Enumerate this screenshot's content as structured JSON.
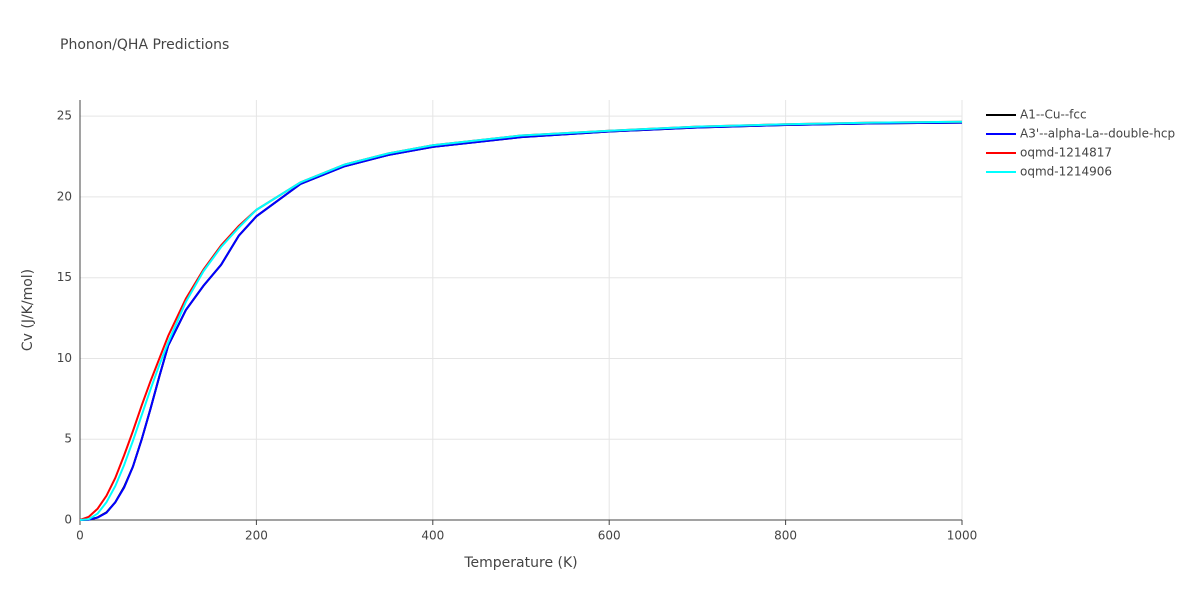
{
  "chart_data": {
    "type": "line",
    "title": "Phonon/QHA Predictions",
    "x_label": "Temperature (K)",
    "y_label": "Cv (J/K/mol)",
    "x": [
      0,
      10,
      20,
      30,
      40,
      50,
      60,
      70,
      80,
      90,
      100,
      120,
      140,
      160,
      180,
      200,
      250,
      300,
      350,
      400,
      500,
      600,
      700,
      800,
      900,
      1000
    ],
    "series": [
      {
        "name": "A1--Cu--fcc",
        "color": "#000000",
        "values": [
          0,
          0.02,
          0.16,
          0.47,
          1.1,
          2.05,
          3.3,
          5.0,
          6.9,
          8.9,
          10.8,
          13.0,
          14.5,
          15.8,
          17.6,
          18.8,
          20.8,
          21.9,
          22.6,
          23.1,
          23.7,
          24.05,
          24.3,
          24.45,
          24.55,
          24.6
        ]
      },
      {
        "name": "A3'--alpha-La--double-hcp",
        "color": "#0000ff",
        "values": [
          0,
          0.02,
          0.15,
          0.45,
          1.1,
          2.0,
          3.3,
          5.0,
          6.9,
          8.9,
          10.8,
          13.0,
          14.5,
          15.8,
          17.6,
          18.8,
          20.8,
          21.9,
          22.6,
          23.1,
          23.7,
          24.05,
          24.3,
          24.45,
          24.55,
          24.6
        ]
      },
      {
        "name": "oqmd-1214817",
        "color": "#ff0000",
        "values": [
          0,
          0.2,
          0.7,
          1.5,
          2.6,
          4.0,
          5.5,
          7.1,
          8.6,
          10.0,
          11.4,
          13.7,
          15.5,
          17.0,
          18.2,
          19.2,
          20.9,
          22.0,
          22.7,
          23.2,
          23.8,
          24.1,
          24.35,
          24.5,
          24.6,
          24.65
        ]
      },
      {
        "name": "oqmd-1214906",
        "color": "#00ffff",
        "values": [
          0,
          0.05,
          0.4,
          1.1,
          2.1,
          3.4,
          4.9,
          6.5,
          8.1,
          9.6,
          11.0,
          13.5,
          15.4,
          16.9,
          18.1,
          19.2,
          20.9,
          22.0,
          22.7,
          23.2,
          23.8,
          24.1,
          24.35,
          24.5,
          24.6,
          24.65
        ]
      }
    ],
    "xlim": [
      0,
      1000
    ],
    "xticks": [
      0,
      200,
      400,
      600,
      800,
      1000
    ],
    "ylim": [
      0,
      26
    ],
    "yticks": [
      0,
      5,
      10,
      15,
      20,
      25
    ],
    "grid": true
  }
}
